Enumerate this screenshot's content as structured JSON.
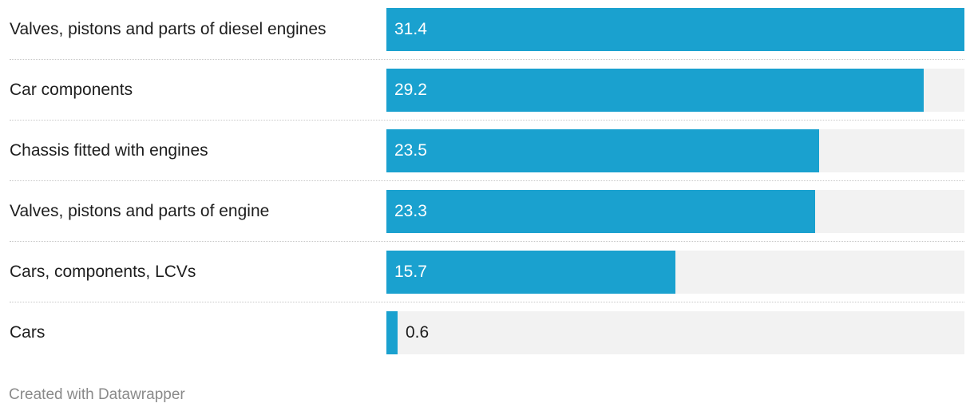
{
  "chart_data": {
    "type": "bar",
    "orientation": "horizontal",
    "categories": [
      "Valves, pistons and parts of diesel engines",
      "Car components",
      "Chassis fitted with engines",
      "Valves, pistons and parts of engine",
      "Cars, components, LCVs",
      "Cars"
    ],
    "values": [
      31.4,
      29.2,
      23.5,
      23.3,
      15.7,
      0.6
    ],
    "xlim": [
      0,
      31.4
    ],
    "bar_color": "#1aa1cf",
    "track_color": "#f2f2f2",
    "grid": false
  },
  "footer": {
    "credit": "Created with Datawrapper"
  }
}
